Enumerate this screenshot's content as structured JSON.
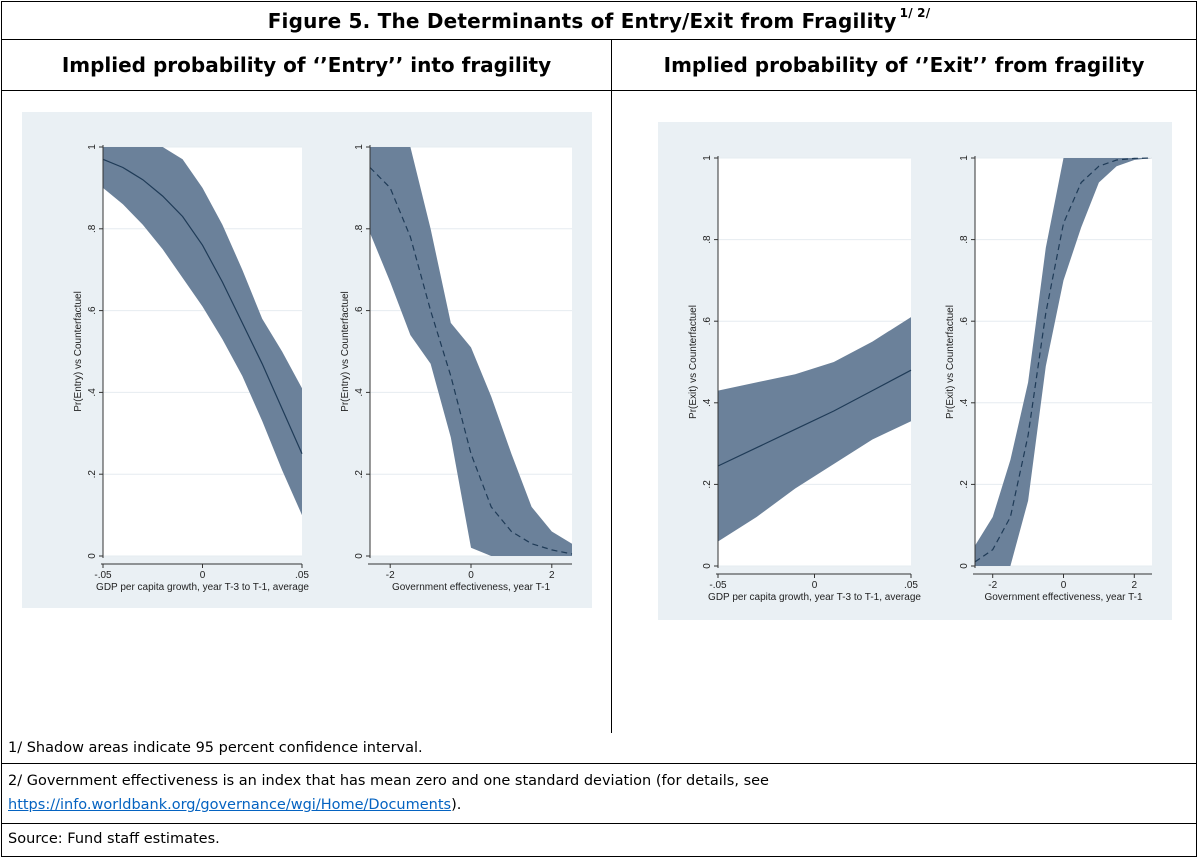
{
  "figure": {
    "title": "Figure 5. The Determinants of Entry/Exit from Fragility",
    "title_sup": "1/ 2/",
    "left_header": "Implied probability of ‘’Entry’’ into fragility",
    "right_header": "Implied probability of ‘’Exit’’ from fragility"
  },
  "colors": {
    "band": "#6b819a",
    "line": "#1f3b57",
    "plot_bg": "#ffffff",
    "outer_bg": "#eaf0f4",
    "grid": "#e6ecf0"
  },
  "chart_data": [
    {
      "id": "entry-gdp",
      "type": "line",
      "xlabel": "GDP per capita growth, year T-3 to T-1, average",
      "ylabel": "Pr(Entry) vs Counterfactuel",
      "xlim": [
        -0.05,
        0.05
      ],
      "ylim": [
        0,
        1
      ],
      "xticks": [
        -0.05,
        0,
        0.05
      ],
      "xtick_labels": [
        "-.05",
        "0",
        ".05"
      ],
      "yticks": [
        0,
        0.2,
        0.4,
        0.6,
        0.8,
        1
      ],
      "ytick_labels": [
        "0",
        ".2",
        ".4",
        ".6",
        ".8",
        "1"
      ],
      "line_style": "solid",
      "x": [
        -0.05,
        -0.04,
        -0.03,
        -0.02,
        -0.01,
        0.0,
        0.01,
        0.02,
        0.03,
        0.04,
        0.05
      ],
      "y": [
        0.97,
        0.95,
        0.92,
        0.88,
        0.83,
        0.76,
        0.67,
        0.57,
        0.47,
        0.36,
        0.25
      ],
      "lower": [
        0.9,
        0.86,
        0.81,
        0.75,
        0.68,
        0.61,
        0.53,
        0.44,
        0.33,
        0.21,
        0.1
      ],
      "upper": [
        1.0,
        1.0,
        1.0,
        1.0,
        0.97,
        0.9,
        0.81,
        0.7,
        0.58,
        0.5,
        0.41
      ]
    },
    {
      "id": "entry-gov",
      "type": "line",
      "xlabel": "Government effectiveness, year T-1",
      "ylabel": "Pr(Entry) vs Counterfactuel",
      "xlim": [
        -2.5,
        2.5
      ],
      "ylim": [
        0,
        1
      ],
      "xticks": [
        -2,
        0,
        2
      ],
      "xtick_labels": [
        "-2",
        "0",
        "2"
      ],
      "yticks": [
        0,
        0.2,
        0.4,
        0.6,
        0.8,
        1
      ],
      "ytick_labels": [
        "0",
        ".2",
        ".4",
        ".6",
        ".8",
        "1"
      ],
      "line_style": "dashed",
      "x": [
        -2.5,
        -2.0,
        -1.5,
        -1.0,
        -0.5,
        0.0,
        0.5,
        1.0,
        1.5,
        2.0,
        2.5
      ],
      "y": [
        0.95,
        0.9,
        0.78,
        0.6,
        0.44,
        0.25,
        0.12,
        0.06,
        0.03,
        0.015,
        0.005
      ],
      "lower": [
        0.79,
        0.67,
        0.54,
        0.47,
        0.29,
        0.02,
        0.0,
        0.0,
        0.0,
        0.0,
        0.0
      ],
      "upper": [
        1.0,
        1.0,
        1.0,
        0.8,
        0.57,
        0.51,
        0.39,
        0.25,
        0.12,
        0.06,
        0.03
      ]
    },
    {
      "id": "exit-gdp",
      "type": "line",
      "xlabel": "GDP per capita growth, year T-3 to T-1, average",
      "ylabel": "Pr(Exit) vs Counterfactuel",
      "xlim": [
        -0.05,
        0.05
      ],
      "ylim": [
        0,
        1
      ],
      "xticks": [
        -0.05,
        0,
        0.05
      ],
      "xtick_labels": [
        "-.05",
        "0",
        ".05"
      ],
      "yticks": [
        0,
        0.2,
        0.4,
        0.6,
        0.8,
        1
      ],
      "ytick_labels": [
        "0",
        ".2",
        ".4",
        ".6",
        ".8",
        "1"
      ],
      "line_style": "solid",
      "x": [
        -0.05,
        -0.03,
        -0.01,
        0.01,
        0.03,
        0.05
      ],
      "y": [
        0.245,
        0.29,
        0.335,
        0.38,
        0.43,
        0.48
      ],
      "lower": [
        0.06,
        0.12,
        0.19,
        0.25,
        0.31,
        0.355
      ],
      "upper": [
        0.43,
        0.45,
        0.47,
        0.5,
        0.55,
        0.61
      ]
    },
    {
      "id": "exit-gov",
      "type": "line",
      "xlabel": "Government effectiveness, year T-1",
      "ylabel": "Pr(Exit) vs Counterfactuel",
      "xlim": [
        -2.5,
        2.5
      ],
      "ylim": [
        0,
        1
      ],
      "xticks": [
        -2,
        0,
        2
      ],
      "xtick_labels": [
        "-2",
        "0",
        "2"
      ],
      "yticks": [
        0,
        0.2,
        0.4,
        0.6,
        0.8,
        1
      ],
      "ytick_labels": [
        "0",
        ".2",
        ".4",
        ".6",
        ".8",
        "1"
      ],
      "line_style": "dashed",
      "x": [
        -2.5,
        -2.0,
        -1.5,
        -1.0,
        -0.5,
        0.0,
        0.5,
        1.0,
        1.5,
        2.0,
        2.5
      ],
      "y": [
        0.01,
        0.04,
        0.12,
        0.32,
        0.62,
        0.84,
        0.94,
        0.98,
        0.995,
        0.999,
        1.0
      ],
      "lower": [
        0.0,
        0.0,
        0.0,
        0.16,
        0.49,
        0.7,
        0.83,
        0.94,
        0.98,
        0.995,
        1.0
      ],
      "upper": [
        0.05,
        0.12,
        0.26,
        0.45,
        0.78,
        1.0,
        1.0,
        1.0,
        1.0,
        1.0,
        1.0
      ]
    }
  ],
  "notes": {
    "note1": "1/ Shadow areas indicate 95 percent confidence interval.",
    "note2_text": "2/ Government effectiveness is an index that has mean zero and one standard deviation (for details, see",
    "note2_link": "https://info.worldbank.org/governance/wgi/Home/Documents",
    "note2_end": ").",
    "source": "Source: Fund staff estimates."
  }
}
